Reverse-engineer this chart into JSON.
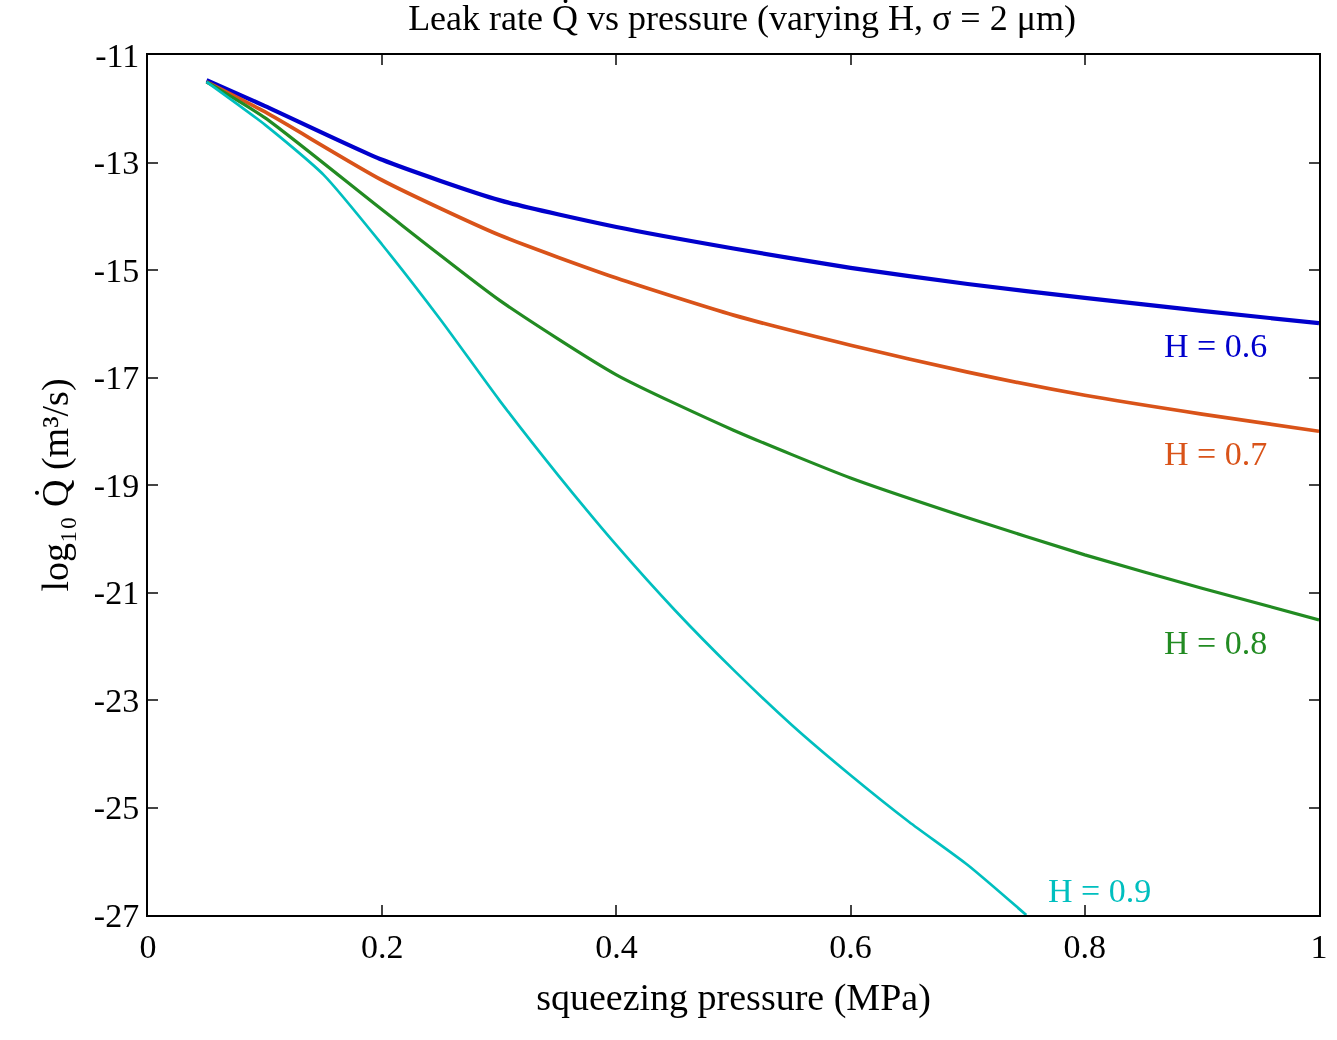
{
  "chart_data": {
    "type": "line",
    "title": "Leak rate Q̇ vs pressure (varying H, σ = 2 μm)",
    "xlabel": "squeezing pressure (MPa)",
    "ylabel": "log₁₀ Q̇ (m³/s)",
    "xlim": [
      0,
      1
    ],
    "ylim": [
      -27,
      -11
    ],
    "xticks": [
      0,
      0.2,
      0.4,
      0.6,
      0.8,
      1
    ],
    "yticks": [
      -11,
      -13,
      -15,
      -17,
      -19,
      -21,
      -23,
      -25,
      -27
    ],
    "grid": false,
    "legend": false,
    "line_style": "solid",
    "marker": "none",
    "series": [
      {
        "name": "H = 0.6",
        "color": "#0000cc",
        "x": [
          0.05,
          0.1,
          0.2,
          0.3,
          0.4,
          0.5,
          0.6,
          0.7,
          0.8,
          0.9,
          1
        ],
        "values": [
          -11.47,
          -11.95,
          -12.95,
          -13.7,
          -14.2,
          -14.6,
          -14.96,
          -15.26,
          -15.52,
          -15.76,
          -15.99
        ]
      },
      {
        "name": "H = 0.7",
        "color": "#d95319",
        "x": [
          0.05,
          0.1,
          0.2,
          0.3,
          0.4,
          0.5,
          0.6,
          0.7,
          0.8,
          0.9,
          1
        ],
        "values": [
          -11.5,
          -12.06,
          -13.33,
          -14.35,
          -15.15,
          -15.84,
          -16.4,
          -16.9,
          -17.33,
          -17.68,
          -18.0
        ]
      },
      {
        "name": "H = 0.8",
        "color": "#228b22",
        "x": [
          0.05,
          0.1,
          0.2,
          0.3,
          0.4,
          0.5,
          0.6,
          0.7,
          0.8,
          0.9,
          1
        ],
        "values": [
          -11.5,
          -12.17,
          -13.88,
          -15.56,
          -16.95,
          -17.98,
          -18.87,
          -19.61,
          -20.3,
          -20.92,
          -21.51
        ]
      },
      {
        "name": "H = 0.9",
        "color": "#00bfbf",
        "x": [
          0.05,
          0.1,
          0.15,
          0.2,
          0.25,
          0.3,
          0.35,
          0.4,
          0.45,
          0.5,
          0.55,
          0.6,
          0.65,
          0.7,
          0.75
        ],
        "values": [
          -11.5,
          -12.3,
          -13.23,
          -14.53,
          -15.93,
          -17.42,
          -18.81,
          -20.12,
          -21.33,
          -22.44,
          -23.47,
          -24.4,
          -25.27,
          -26.07,
          -27
        ]
      }
    ]
  }
}
